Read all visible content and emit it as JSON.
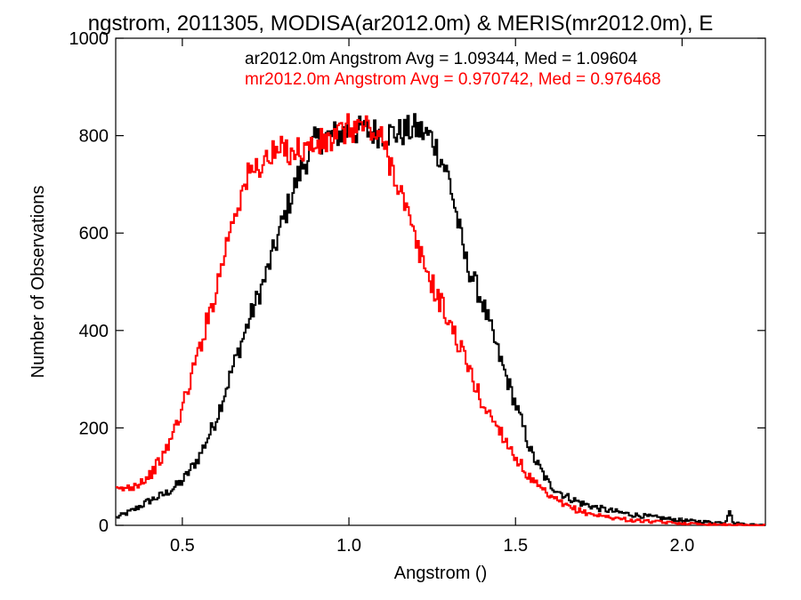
{
  "chart_data": {
    "type": "line",
    "title": "ngstrom, 2011305, MODISA(ar2012.0m) & MERIS(mr2012.0m), E",
    "xlabel": "Angstrom ()",
    "ylabel": "Number of Observations",
    "xlim": [
      0.3,
      2.25
    ],
    "ylim": [
      0,
      1000
    ],
    "xticks": [
      0.5,
      1.0,
      1.5,
      2.0
    ],
    "xtick_labels": [
      "0.5",
      "1.0",
      "1.5",
      "2.0"
    ],
    "yticks": [
      0,
      200,
      400,
      600,
      800,
      1000
    ],
    "ytick_labels": [
      "0",
      "200",
      "400",
      "600",
      "800",
      "1000"
    ],
    "grid": false,
    "legend": "top-right",
    "series": [
      {
        "name": "ar2012.0m Angstrom Avg = 1.09344, Med = 1.09604",
        "color": "#000000",
        "x": [
          0.3,
          0.35,
          0.4,
          0.45,
          0.5,
          0.55,
          0.6,
          0.65,
          0.7,
          0.75,
          0.8,
          0.85,
          0.9,
          0.95,
          1.0,
          1.05,
          1.1,
          1.15,
          1.2,
          1.25,
          1.3,
          1.35,
          1.4,
          1.45,
          1.5,
          1.55,
          1.6,
          1.65,
          1.7,
          1.75,
          1.8,
          1.85,
          1.9,
          1.95,
          2.0,
          2.05,
          2.1,
          2.13,
          2.145,
          2.15,
          2.2,
          2.25
        ],
        "values": [
          15,
          30,
          50,
          65,
          90,
          140,
          215,
          320,
          420,
          510,
          620,
          720,
          790,
          800,
          810,
          810,
          805,
          805,
          815,
          795,
          715,
          545,
          460,
          350,
          250,
          145,
          85,
          60,
          45,
          35,
          28,
          22,
          18,
          14,
          10,
          8,
          6,
          6,
          40,
          5,
          2,
          0
        ]
      },
      {
        "name": "mr2012.0m Angstrom Avg = 0.970742, Med = 0.976468",
        "color": "#ff0000",
        "x": [
          0.3,
          0.35,
          0.4,
          0.45,
          0.5,
          0.55,
          0.6,
          0.65,
          0.7,
          0.75,
          0.8,
          0.85,
          0.9,
          0.95,
          1.0,
          1.05,
          1.1,
          1.15,
          1.2,
          1.25,
          1.3,
          1.35,
          1.4,
          1.45,
          1.5,
          1.55,
          1.6,
          1.65,
          1.7,
          1.75,
          1.8,
          1.85,
          1.9,
          1.95,
          2.0,
          2.05,
          2.1,
          2.15,
          2.2,
          2.25
        ],
        "values": [
          70,
          80,
          100,
          150,
          240,
          360,
          480,
          630,
          720,
          750,
          770,
          770,
          780,
          790,
          815,
          820,
          790,
          700,
          580,
          495,
          420,
          340,
          250,
          200,
          140,
          90,
          60,
          40,
          28,
          20,
          15,
          10,
          8,
          6,
          4,
          3,
          2,
          1,
          0,
          0
        ]
      }
    ]
  }
}
